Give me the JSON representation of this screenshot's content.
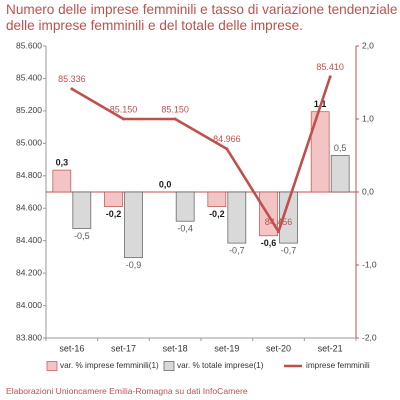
{
  "title_lines": [
    "Numero delle imprese femminili e tasso di variazione tendenziale",
    "delle imprese femminili e del totale delle imprese."
  ],
  "source": "Elaborazioni Unioncamere Emilia-Romagna su dati InfoCamere",
  "colors": {
    "accent": "#c0504d",
    "bar_female": "#f2c4c3",
    "bar_total": "#d9d9d9",
    "line": "#c0504d",
    "text": "#333333"
  },
  "chart_data": {
    "type": "bar",
    "categories": [
      "set-16",
      "set-17",
      "set-18",
      "set-19",
      "set-20",
      "set-21"
    ],
    "series": [
      {
        "name": "var. % imprese femminili(1)",
        "type": "bar",
        "axis": "right",
        "values": [
          0.3,
          -0.2,
          0.0,
          -0.2,
          -0.6,
          1.1
        ],
        "labels": [
          "0,3",
          "-0,2",
          "0,0",
          "-0,2",
          "-0,6",
          "1,1"
        ]
      },
      {
        "name": "var. % totale imprese(1)",
        "type": "bar",
        "axis": "right",
        "values": [
          -0.5,
          -0.9,
          -0.4,
          -0.7,
          -0.7,
          0.5
        ],
        "labels": [
          "-0,5",
          "-0,9",
          "-0,4",
          "-0,7",
          "-0,7",
          "0,5"
        ]
      },
      {
        "name": "imprese femminili",
        "type": "line",
        "axis": "left",
        "values": [
          85336,
          85150,
          85150,
          84966,
          84456,
          85410
        ],
        "labels": [
          "85.336",
          "85.150",
          "85.150",
          "84.966",
          "84.456",
          "85.410"
        ]
      }
    ],
    "left_axis": {
      "ylim": [
        83800,
        85600
      ],
      "ticks": [
        83800,
        84000,
        84200,
        84400,
        84600,
        84800,
        85000,
        85200,
        85400,
        85600
      ],
      "tick_labels": [
        "83.800",
        "84.000",
        "84.200",
        "84.400",
        "84.600",
        "84.800",
        "85.000",
        "85.200",
        "85.400",
        "85.600"
      ]
    },
    "right_axis": {
      "ylim": [
        -2.0,
        2.0
      ],
      "ticks": [
        -2.0,
        -1.0,
        0.0,
        1.0,
        2.0
      ],
      "tick_labels": [
        "-2,0",
        "-1,0",
        "0,0",
        "1,0",
        "2,0"
      ]
    },
    "legend_position": "bottom",
    "grid": false
  }
}
